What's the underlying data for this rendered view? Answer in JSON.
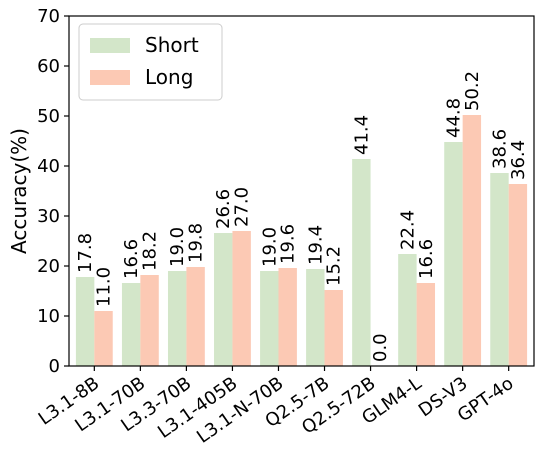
{
  "chart_data": {
    "type": "bar",
    "title": "",
    "xlabel": "",
    "ylabel": "Accuracy(%)",
    "ylim": [
      0,
      70
    ],
    "yticks": [
      0,
      10,
      20,
      30,
      40,
      50,
      60,
      70
    ],
    "grid": false,
    "legend_position": "top-left",
    "categories": [
      "L3.1-8B",
      "L3.1-70B",
      "L3.3-70B",
      "L3.1-405B",
      "L3.1-N-70B",
      "Q2.5-7B",
      "Q2.5-72B",
      "GLM4-L",
      "DS-V3",
      "GPT-4o"
    ],
    "series": [
      {
        "name": "Short",
        "color": "#d3e6c9",
        "values": [
          17.8,
          16.6,
          19.0,
          26.6,
          19.0,
          19.4,
          41.4,
          22.4,
          44.8,
          38.6
        ],
        "labels": [
          "17.8",
          "16.6",
          "19.0",
          "26.6",
          "19.0",
          "19.4",
          "41.4",
          "22.4",
          "44.8",
          "38.6"
        ]
      },
      {
        "name": "Long",
        "color": "#fcc9b4",
        "values": [
          11.0,
          18.2,
          19.8,
          27.0,
          19.6,
          15.2,
          0.0,
          16.6,
          50.2,
          36.4
        ],
        "labels": [
          "11.0",
          "18.2",
          "19.8",
          "27.0",
          "19.6",
          "15.2",
          "0.0",
          "16.6",
          "50.2",
          "36.4"
        ]
      }
    ]
  }
}
